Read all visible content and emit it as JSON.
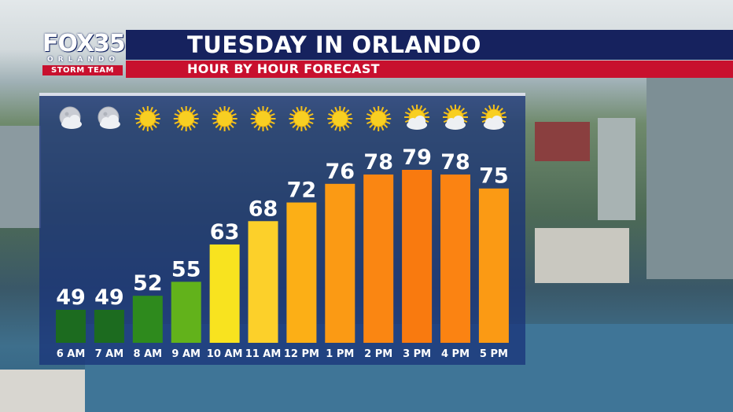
{
  "header": {
    "logo_station": "FOX35",
    "logo_city": "ORLANDO",
    "logo_team": "STORM TEAM",
    "title": "TUESDAY IN ORLANDO",
    "subtitle": "HOUR BY HOUR FORECAST"
  },
  "chart_data": {
    "type": "bar",
    "title": "TUESDAY IN ORLANDO",
    "subtitle": "HOUR BY HOUR FORECAST",
    "xlabel": "",
    "ylabel": "",
    "categories": [
      "6 AM",
      "7 AM",
      "8 AM",
      "9 AM",
      "10 AM",
      "11 AM",
      "12 PM",
      "1 PM",
      "2 PM",
      "3 PM",
      "4 PM",
      "5 PM"
    ],
    "values": [
      49,
      49,
      52,
      55,
      63,
      68,
      72,
      76,
      78,
      79,
      78,
      75
    ],
    "conditions": [
      "moon-cloud-icon",
      "moon-cloud-icon",
      "sun-icon",
      "sun-icon",
      "sun-icon",
      "sun-icon",
      "sun-icon",
      "sun-icon",
      "sun-icon",
      "partly-cloudy-icon",
      "partly-cloudy-icon",
      "partly-cloudy-icon"
    ],
    "bar_colors": [
      "#1c6b1f",
      "#1c6b1f",
      "#2e8a1d",
      "#62b21b",
      "#f8e31f",
      "#fcd02a",
      "#fcaf16",
      "#fb9a14",
      "#fa8612",
      "#f97a0f",
      "#fb8312",
      "#fb9a14"
    ],
    "grid": false,
    "legend": "none"
  }
}
